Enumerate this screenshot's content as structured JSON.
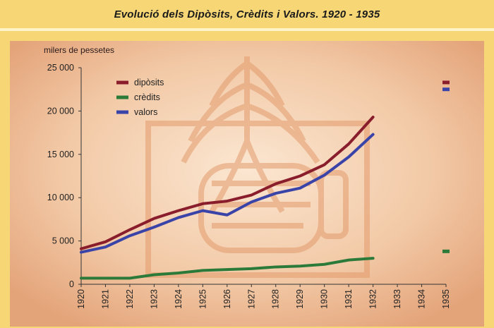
{
  "title": "Evolució dels Dipòsits, Crèdits i Valors. 1920 - 1935",
  "colors": {
    "background": "#f6d675",
    "panel_light": "#f7dcc2",
    "panel_dark": "#e9b184",
    "watermark": "#e8a67a",
    "diposits": "#8a1d2c",
    "credits": "#2c7a3a",
    "valors": "#3a44a8"
  },
  "chart_data": {
    "type": "line",
    "title": "Evolució dels Dipòsits, Crèdits i Valors. 1920 - 1935",
    "ylabel": "milers de pessetes",
    "xlabel": "",
    "x": [
      "1920",
      "1921",
      "1922",
      "1923",
      "1924",
      "1925",
      "1926",
      "1927",
      "1928",
      "1929",
      "1930",
      "1931",
      "1932",
      "1933",
      "1934",
      "1935"
    ],
    "ylim": [
      0,
      25000
    ],
    "yticks": [
      0,
      5000,
      10000,
      15000,
      20000,
      25000
    ],
    "ytick_labels": [
      "0",
      "5 000",
      "10 000",
      "15 000",
      "20 000",
      "25 000"
    ],
    "grid": false,
    "legend_position": "top-left",
    "series": [
      {
        "name": "dipòsits",
        "color_key": "diposits",
        "values": [
          4100,
          4900,
          6300,
          7600,
          8500,
          9300,
          9600,
          10300,
          11600,
          12500,
          13800,
          16200,
          19300,
          null,
          null,
          null
        ],
        "marker_1935": 23300
      },
      {
        "name": "crèdits",
        "color_key": "credits",
        "values": [
          700,
          700,
          700,
          1100,
          1300,
          1600,
          1700,
          1800,
          2000,
          2100,
          2300,
          2800,
          3000,
          null,
          null,
          null
        ],
        "marker_1935": 3800
      },
      {
        "name": "valors",
        "color_key": "valors",
        "values": [
          3700,
          4300,
          5600,
          6600,
          7700,
          8500,
          8000,
          9500,
          10500,
          11100,
          12600,
          14700,
          17300,
          null,
          null,
          null
        ],
        "marker_1935": 22500
      }
    ]
  }
}
